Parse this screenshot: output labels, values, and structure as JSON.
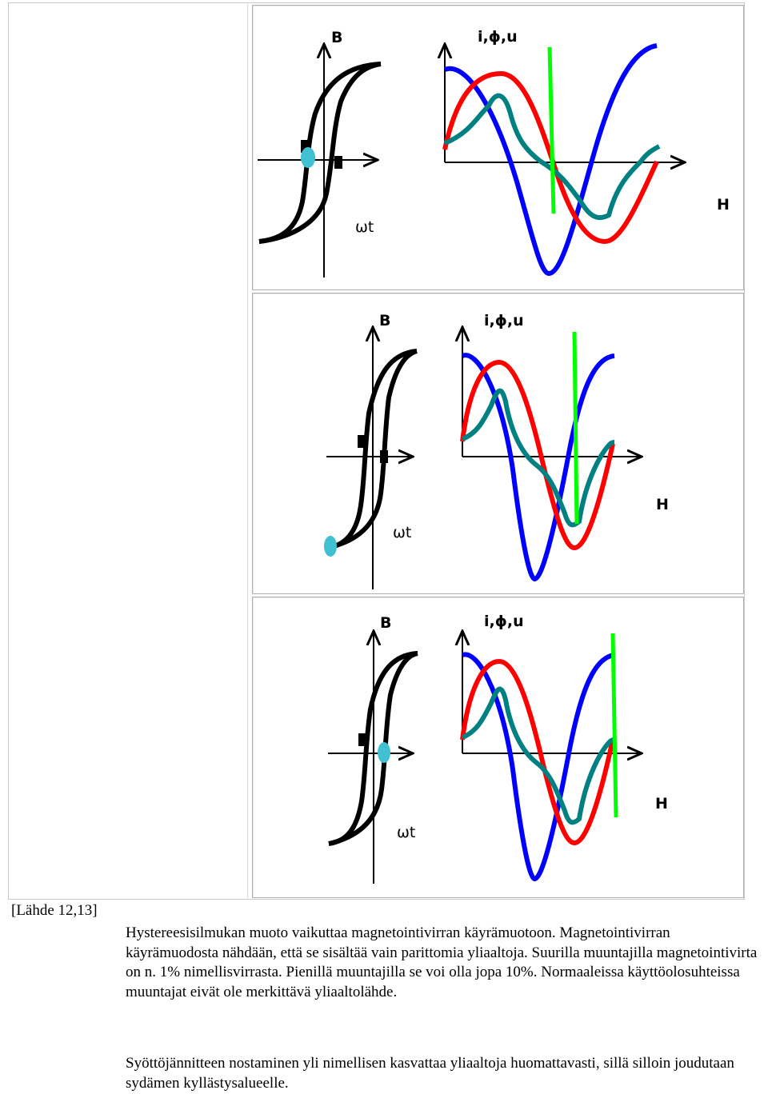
{
  "colors": {
    "hysteresis": "#000000",
    "current": "#0000ff",
    "flux": "#ff0000",
    "voltage_component": "#008080",
    "marker_line": "#00ff00",
    "operating_point": "#40c0d0"
  },
  "panels": [
    {
      "b_label": "B",
      "wave_label": "i,ϕ,u",
      "h_label": "H",
      "wt_label": "ωt"
    },
    {
      "b_label": "B",
      "wave_label": "i,ϕ,u",
      "h_label": "H",
      "wt_label": "ωt"
    },
    {
      "b_label": "B",
      "wave_label": "i,ϕ,u",
      "h_label": "H",
      "wt_label": "ωt"
    }
  ],
  "source": "[Lähde 12,13]",
  "paragraphs": [
    "Hystereesisilmukan muoto vaikuttaa magnetointivirran käyrämuotoon. Magnetointivirran käyrämuodosta nähdään, että se sisältää vain parittomia yliaaltoja. Suurilla muuntajilla magnetointivirta on n. 1% nimellisvirrasta. Pienillä muuntajilla se voi olla jopa 10%. Normaaleissa käyttöolosuhteissa muuntajat eivät ole merkittävä yliaaltolähde.",
    "Syöttöjännitteen nostaminen yli nimellisen kasvattaa yliaaltoja huomattavasti, sillä silloin joudutaan sydämen kyllästysalueelle."
  ]
}
